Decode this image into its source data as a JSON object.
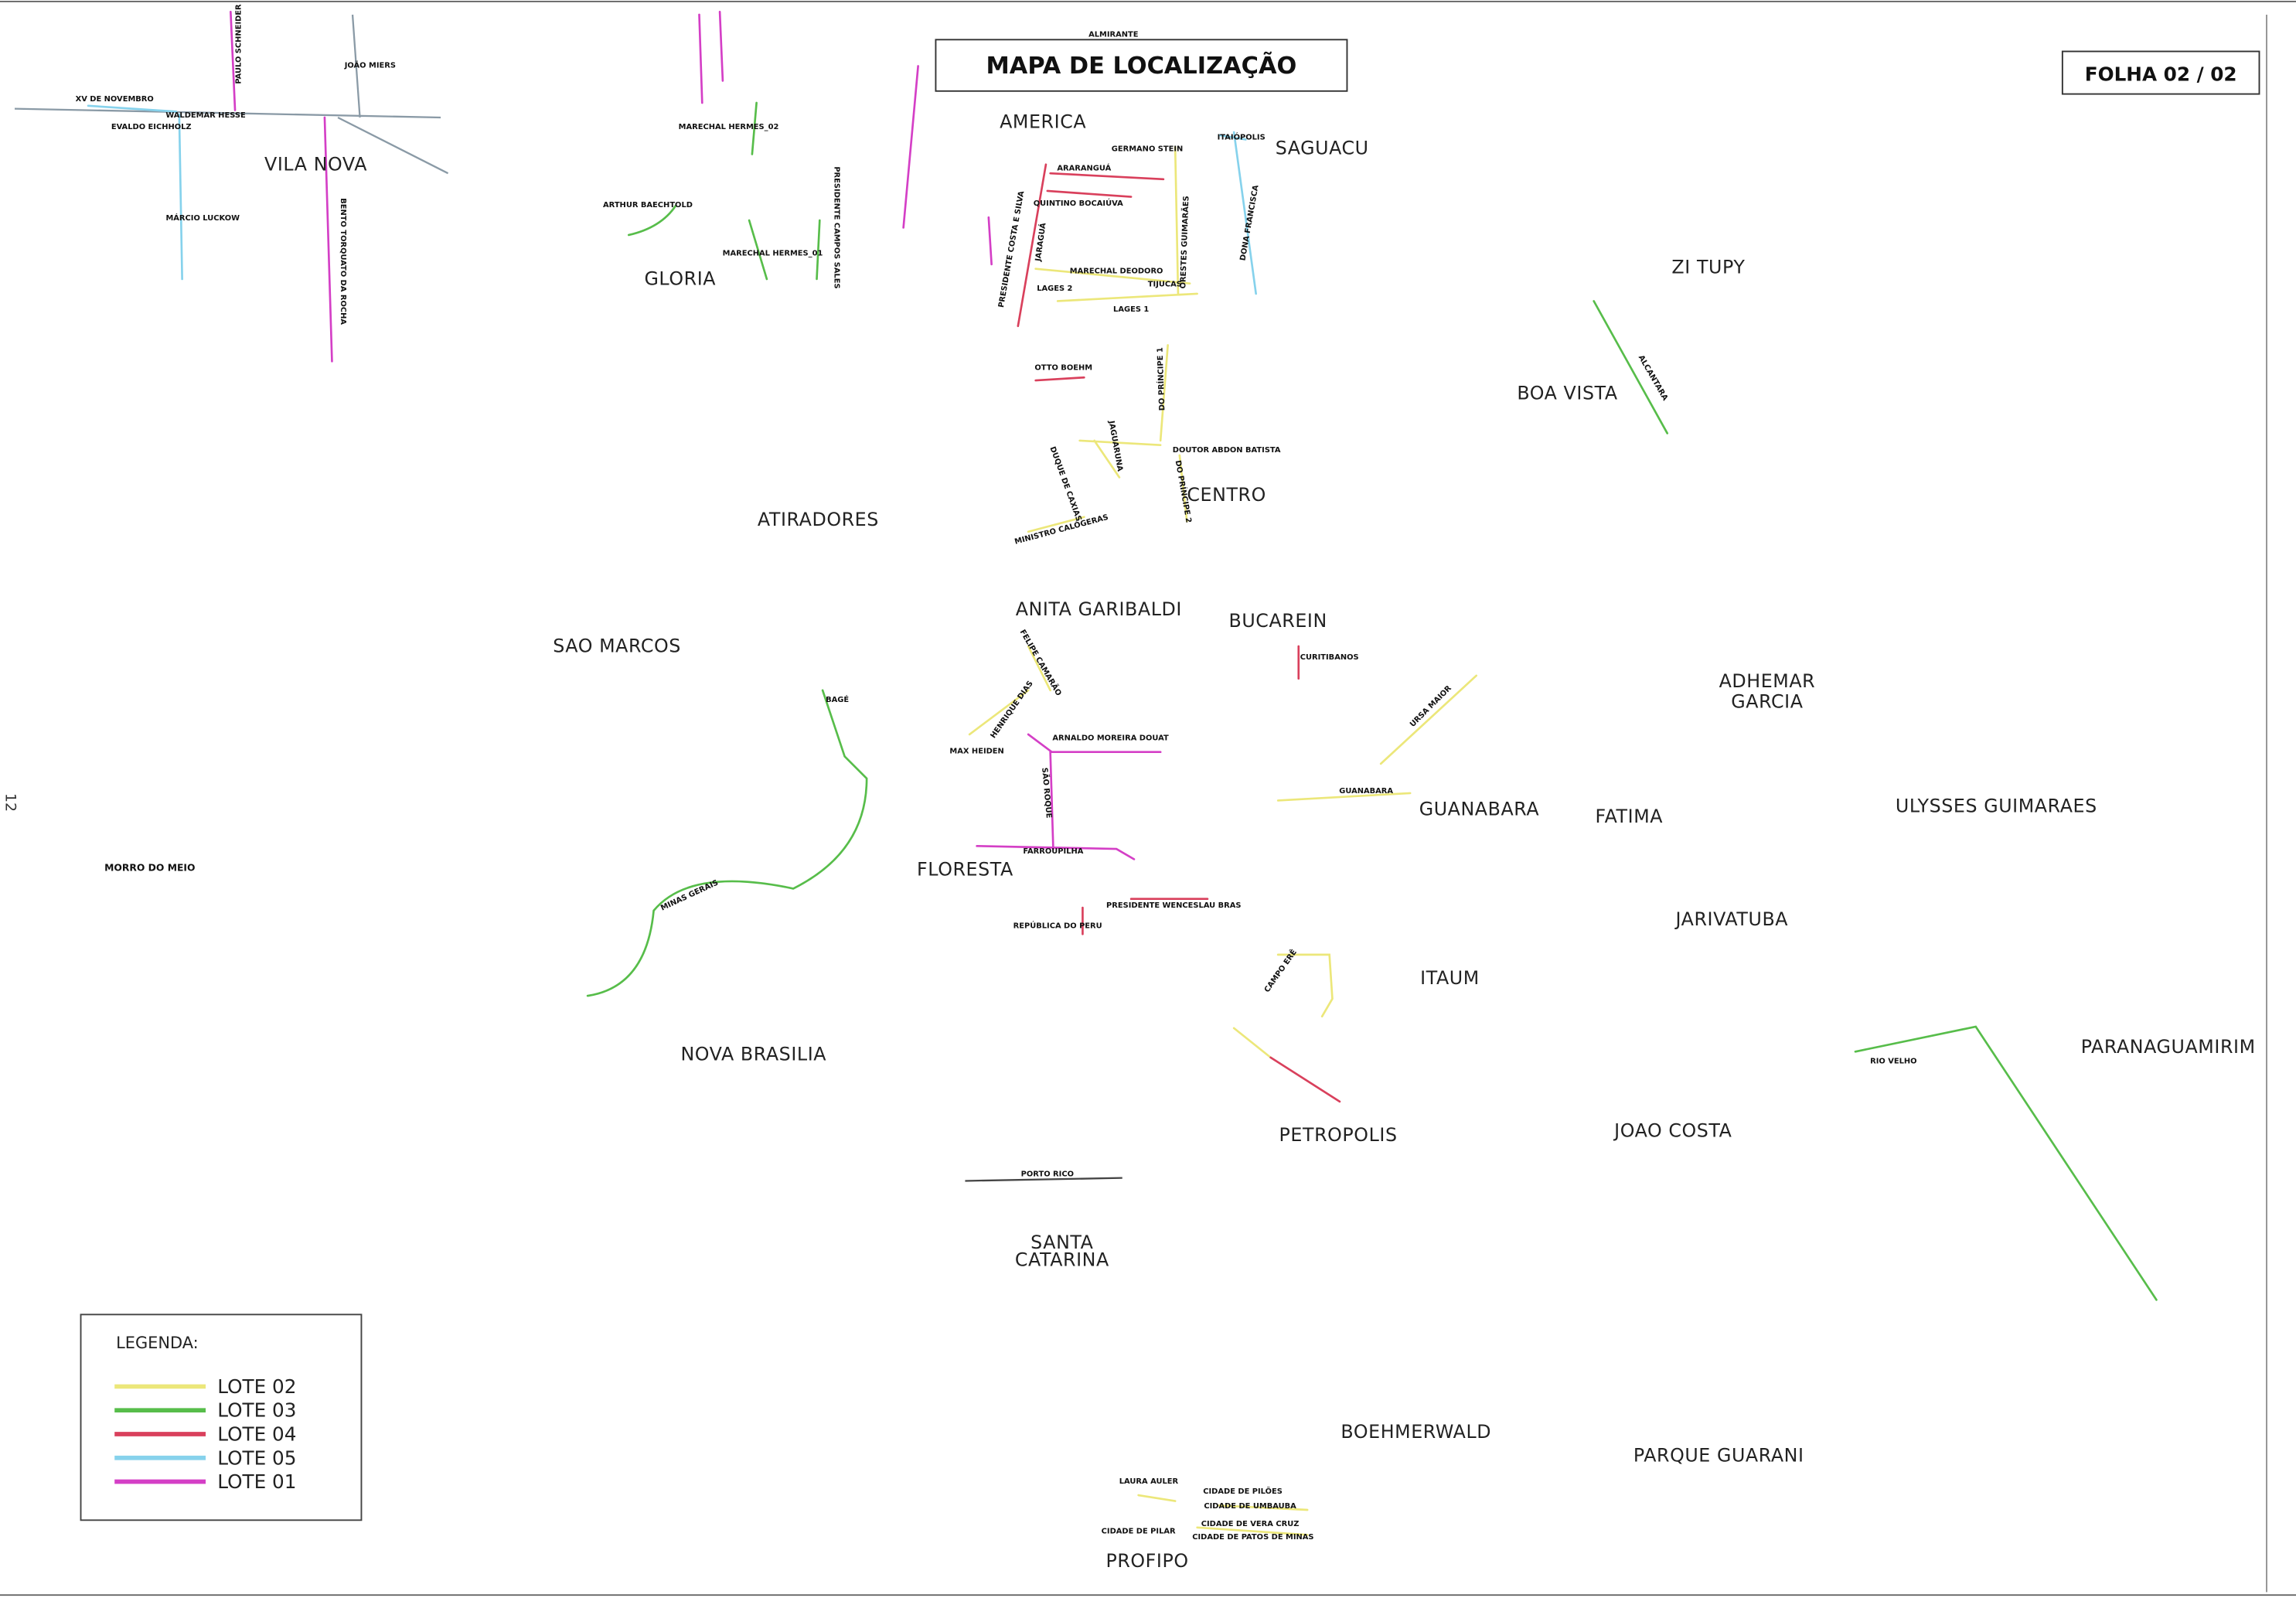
{
  "title": "MAPA DE LOCALIZAÇÃO",
  "sheet": "FOLHA 02 / 02",
  "margin_number": "12",
  "neighborhoods": [
    "VILA NOVA",
    "GLORIA",
    "AMERICA",
    "SAGUACU",
    "ZI TUPY",
    "BOA VISTA",
    "ATIRADORES",
    "CENTRO",
    "ANITA GARIBALDI",
    "BUCAREIN",
    "SAO MARCOS",
    [
      "ADHEMAR",
      "GARCIA"
    ],
    "GUANABARA",
    "FATIMA",
    "ULYSSES GUIMARAES",
    "FLORESTA",
    "MORRO DO MEIO",
    "JARIVATUBA",
    "ITAUM",
    "PARANAGUAMIRIM",
    "NOVA BRASILIA",
    "PETROPOLIS",
    "JOAO COSTA",
    [
      "SANTA",
      "CATARINA"
    ],
    "BOEHMERWALD",
    "PARQUE GUARANI",
    "PROFIPO"
  ],
  "streets": [
    "XV DE NOVEMBRO",
    "WALDEMAR HESSE",
    "EVALDO EICHHOLZ",
    "JOÃO MIERS",
    "PAULO SCHNEIDER",
    "MÁRCIO LUCKOW",
    "BENTO TORQUATO DA ROCHA",
    "ARTHUR BAECHTOLD",
    "MARECHAL HERMES_02",
    "MARECHAL HERMES_01",
    "PRESIDENTE CAMPOS SALES",
    "ALMIRANTE",
    "ARARANGUÁ",
    "GERMANO STEIN",
    "ITAIÓPOLIS",
    "QUINTINO BOCAIÚVA",
    "PRESIDENTE COSTA E SILVA",
    "JARAGUÁ",
    "ORESTES GUIMARÃES",
    "DONA FRANCISCA",
    "MARECHAL DEODORO",
    "TIJUCAS",
    "LAGES 2",
    "LAGES 1",
    "OTTO BOEHM",
    "DO PRÍNCIPE 1",
    "DOUTOR ABDON BATISTA",
    "JAGUARUNA",
    "DUQUE DE CAXIAS",
    "DO PRÍNCIPE 2",
    "MINISTRO CALÓGERAS",
    "ALCANTARA",
    "CURITIBANOS",
    "FELIPE CAMARÃO",
    "HENRIQUE DIAS",
    "MAX HEIDEN",
    "ARNALDO MOREIRA DOUAT",
    "SÃO ROQUE",
    "BAGÉ",
    "URSA MAIOR",
    "GUANABARA",
    "FARROUPILHA",
    "MINAS GERAIS",
    "REPÚBLICA DO PERU",
    "PRESIDENTE WENCESLAU BRAS",
    "CAMPO ERÊ",
    "RIO VELHO",
    "PORTO RICO",
    "LAURA AULER",
    "CIDADE DE PILÕES",
    "CIDADE DE UMBAUBA",
    "CIDADE DE VERA CRUZ",
    "CIDADE DE PATOS DE MINAS",
    "CIDADE DE PILAR"
  ],
  "legend": {
    "title": "LEGENDA:",
    "items": [
      {
        "label": "LOTE 02",
        "color": "#ece77a"
      },
      {
        "label": "LOTE 03",
        "color": "#57bd4a"
      },
      {
        "label": "LOTE 04",
        "color": "#d9405c"
      },
      {
        "label": "LOTE 05",
        "color": "#86d2ec"
      },
      {
        "label": "LOTE 01",
        "color": "#d43fc6"
      }
    ]
  }
}
